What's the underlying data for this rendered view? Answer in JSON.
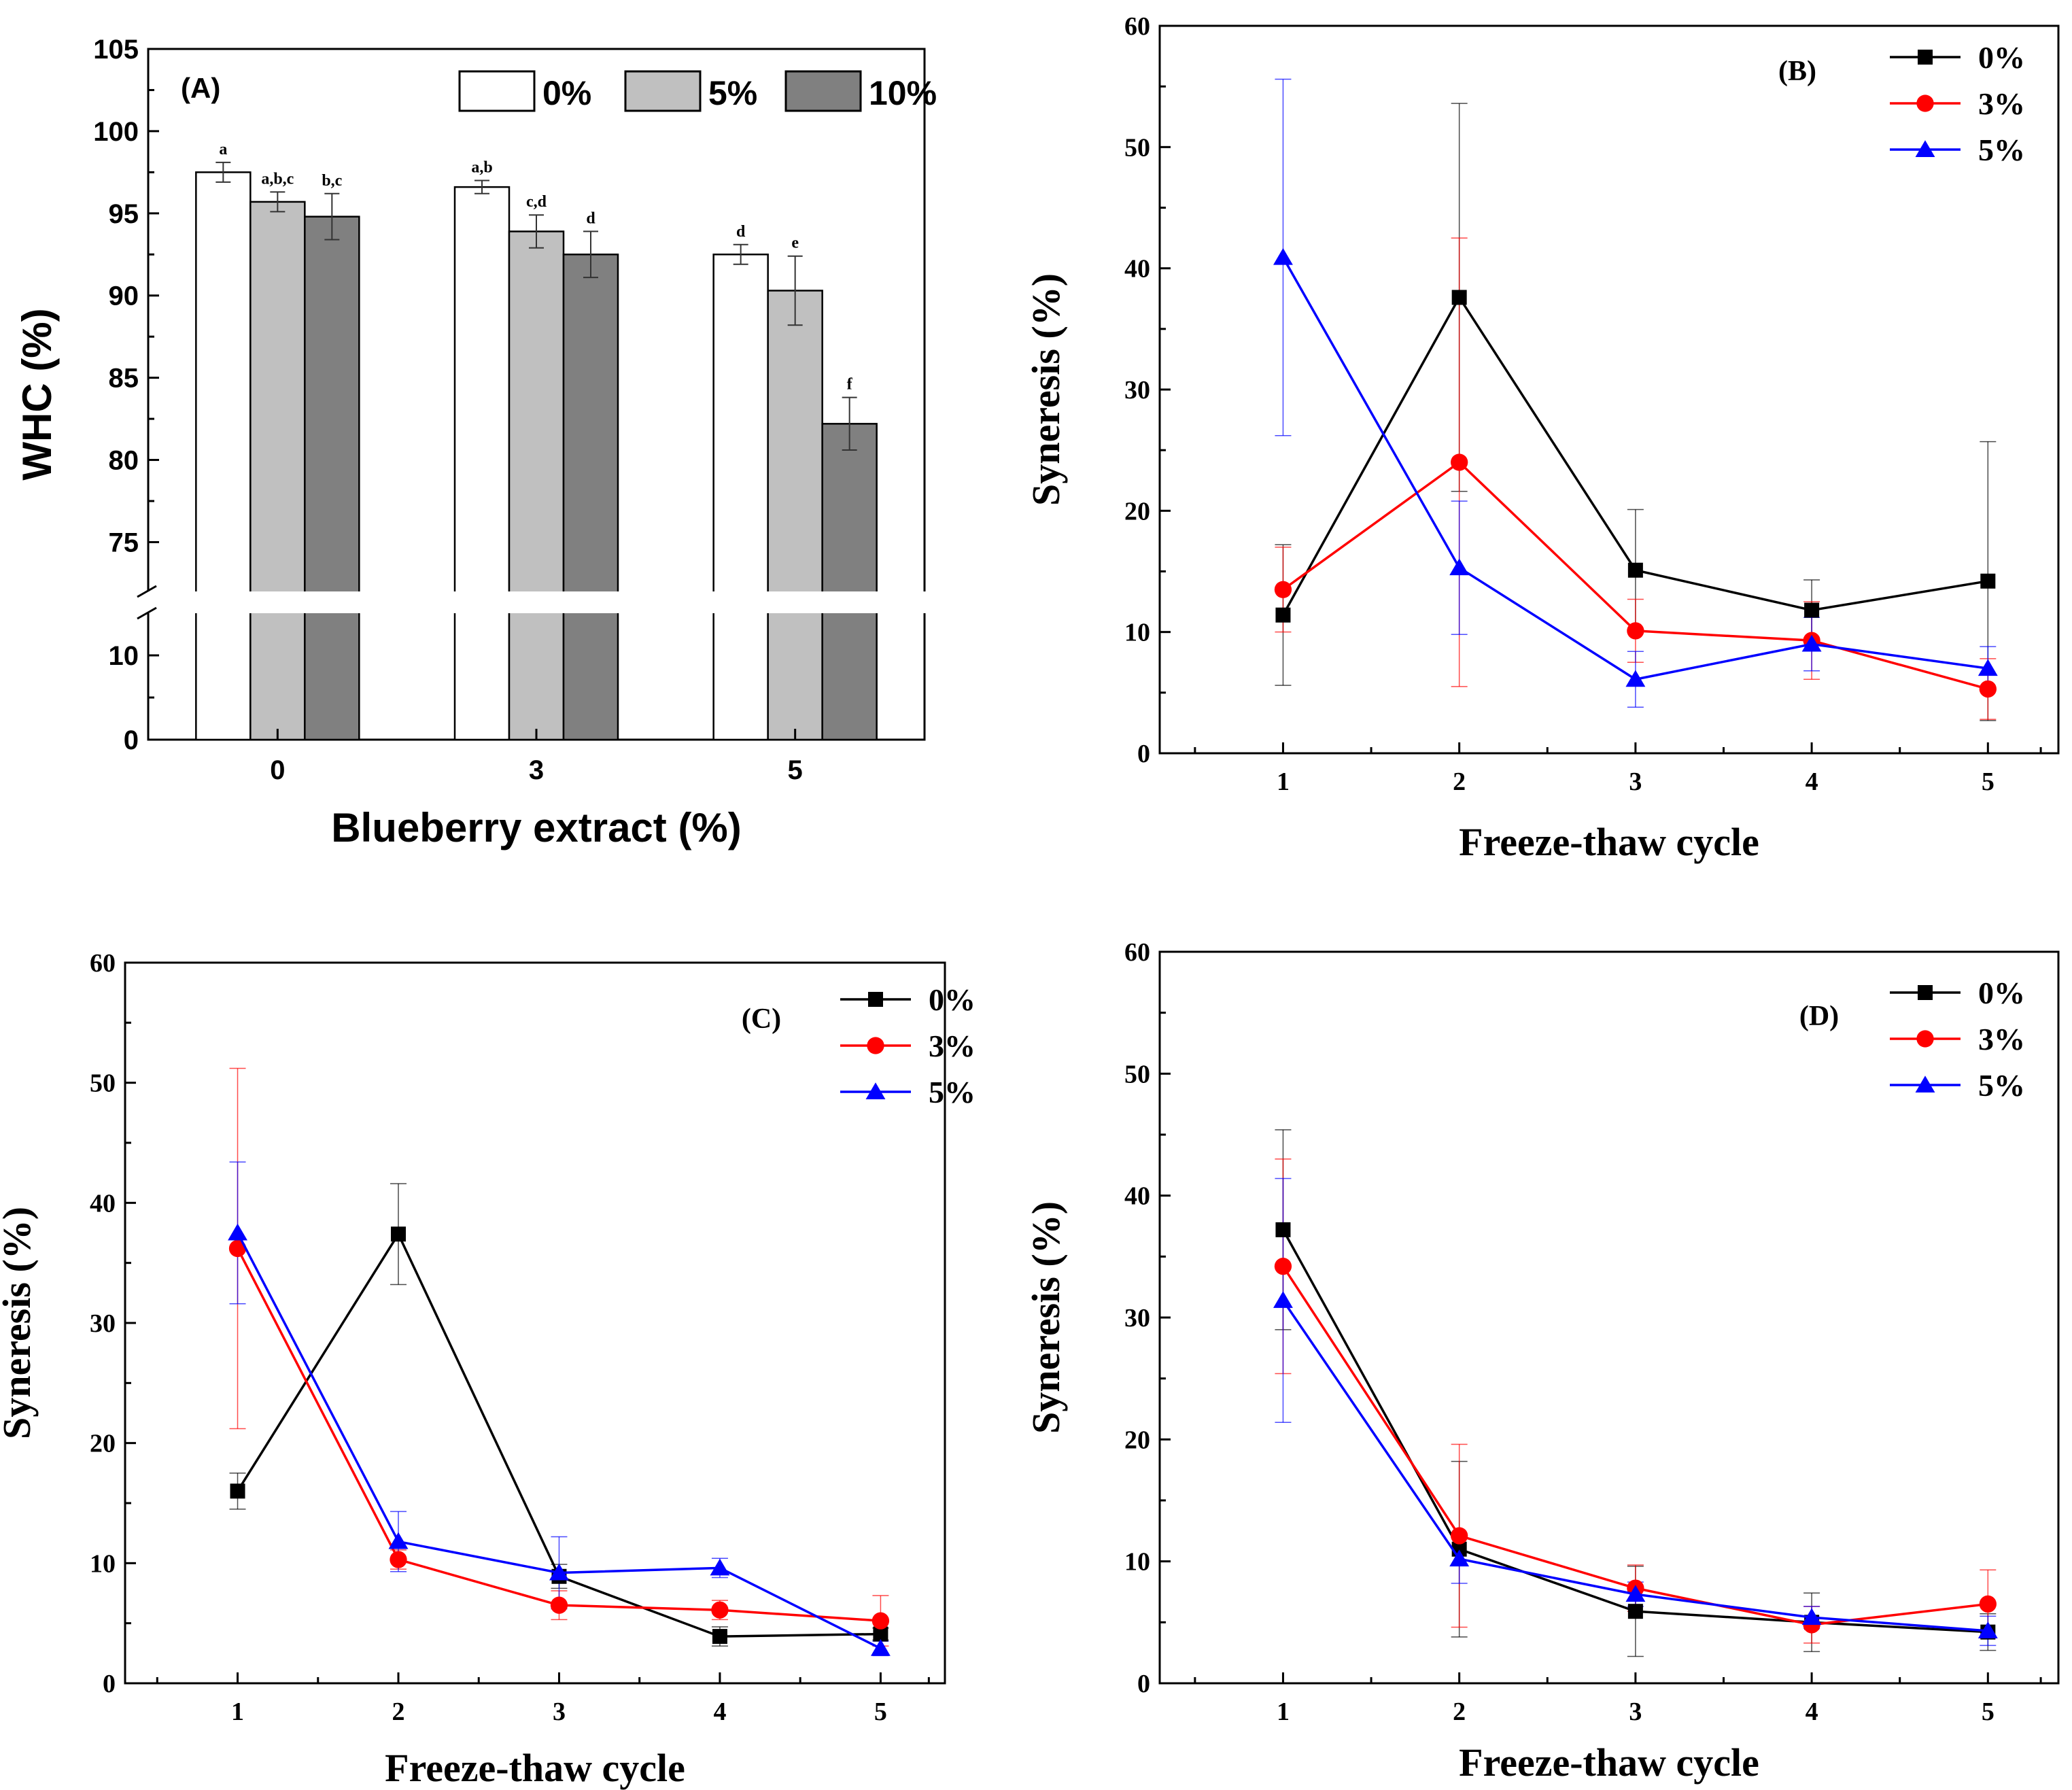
{
  "chart_data": [
    {
      "panel": "A",
      "type": "bar",
      "panel_label": "(A)",
      "xlabel": "Blueberry extract (%)",
      "ylabel": "WHC (%)",
      "categories": [
        "0",
        "3",
        "5"
      ],
      "ylim_lower": [
        0,
        15
      ],
      "ylim_upper": [
        72,
        105
      ],
      "yticks_lower": [
        "0",
        "10"
      ],
      "yticks_upper": [
        "75",
        "80",
        "85",
        "90",
        "95",
        "100",
        "105"
      ],
      "legend_position": "top-right",
      "series": [
        {
          "name": "0%",
          "color": "#ffffff",
          "values": [
            97.5,
            96.6,
            92.5
          ],
          "errors": [
            0.6,
            0.4,
            0.6
          ],
          "letters": [
            "a",
            "a,b",
            "d"
          ]
        },
        {
          "name": "5%",
          "color": "#c0c0c0",
          "values": [
            95.7,
            93.9,
            90.3
          ],
          "errors": [
            0.6,
            1.0,
            2.1
          ],
          "letters": [
            "a,b,c",
            "c,d",
            "e"
          ]
        },
        {
          "name": "10%",
          "color": "#808080",
          "values": [
            94.8,
            92.5,
            82.2
          ],
          "errors": [
            1.4,
            1.4,
            1.6
          ],
          "letters": [
            "b,c",
            "d",
            "f"
          ]
        }
      ]
    },
    {
      "panel": "B",
      "type": "line",
      "panel_label": "(B)",
      "xlabel": "Freeze-thaw cycle",
      "ylabel": "Syneresis (%)",
      "x": [
        1,
        2,
        3,
        4,
        5
      ],
      "xticks": [
        "1",
        "2",
        "3",
        "4",
        "5"
      ],
      "yticks": [
        "0",
        "10",
        "20",
        "30",
        "40",
        "50",
        "60"
      ],
      "ylim": [
        0,
        60
      ],
      "legend_position": "top-right",
      "series": [
        {
          "name": "0%",
          "color": "#000000",
          "marker": "square",
          "values": [
            11.4,
            37.6,
            15.1,
            11.8,
            14.2
          ],
          "errors": [
            5.8,
            16.0,
            5.0,
            2.5,
            11.5
          ]
        },
        {
          "name": "3%",
          "color": "#ff0000",
          "marker": "circle",
          "values": [
            13.5,
            24.0,
            10.1,
            9.3,
            5.3
          ],
          "errors": [
            3.5,
            18.5,
            2.6,
            3.2,
            2.5
          ]
        },
        {
          "name": "5%",
          "color": "#0000ff",
          "marker": "triangle",
          "values": [
            40.9,
            15.3,
            6.1,
            9.0,
            7.0
          ],
          "errors": [
            14.7,
            5.5,
            2.3,
            2.2,
            1.8
          ]
        }
      ]
    },
    {
      "panel": "C",
      "type": "line",
      "panel_label": "(C)",
      "xlabel": "Freeze-thaw cycle",
      "ylabel": "Syneresis (%)",
      "x": [
        1,
        2,
        3,
        4,
        5
      ],
      "xticks": [
        "1",
        "2",
        "3",
        "4",
        "5"
      ],
      "yticks": [
        "0",
        "10",
        "20",
        "30",
        "40",
        "50",
        "60"
      ],
      "ylim": [
        0,
        60
      ],
      "legend_position": "top-right",
      "series": [
        {
          "name": "0%",
          "color": "#000000",
          "marker": "square",
          "values": [
            16.0,
            37.4,
            8.9,
            3.9,
            4.1
          ],
          "errors": [
            1.5,
            4.2,
            1.0,
            0.8,
            0.5
          ]
        },
        {
          "name": "3%",
          "color": "#ff0000",
          "marker": "circle",
          "values": [
            36.2,
            10.3,
            6.5,
            6.1,
            5.2
          ],
          "errors": [
            15.0,
            0.8,
            1.2,
            0.8,
            2.1
          ]
        },
        {
          "name": "5%",
          "color": "#0000ff",
          "marker": "triangle",
          "values": [
            37.5,
            11.8,
            9.2,
            9.6,
            2.9
          ],
          "errors": [
            5.9,
            2.5,
            3.0,
            0.8,
            0.6
          ]
        }
      ]
    },
    {
      "panel": "D",
      "type": "line",
      "panel_label": "(D)",
      "xlabel": "Freeze-thaw cycle",
      "ylabel": "Syneresis (%)",
      "x": [
        1,
        2,
        3,
        4,
        5
      ],
      "xticks": [
        "1",
        "2",
        "3",
        "4",
        "5"
      ],
      "yticks": [
        "0",
        "10",
        "20",
        "30",
        "40",
        "50",
        "60"
      ],
      "ylim": [
        0,
        60
      ],
      "legend_position": "top-right",
      "series": [
        {
          "name": "0%",
          "color": "#000000",
          "marker": "square",
          "values": [
            37.2,
            11.0,
            5.9,
            5.0,
            4.2
          ],
          "errors": [
            8.2,
            7.2,
            3.7,
            2.4,
            1.5
          ]
        },
        {
          "name": "3%",
          "color": "#ff0000",
          "marker": "circle",
          "values": [
            34.2,
            12.1,
            7.8,
            4.8,
            6.5
          ],
          "errors": [
            8.8,
            7.5,
            1.9,
            1.5,
            2.8
          ]
        },
        {
          "name": "5%",
          "color": "#0000ff",
          "marker": "triangle",
          "values": [
            31.4,
            10.2,
            7.3,
            5.4,
            4.3
          ],
          "errors": [
            10.0,
            2.0,
            1.0,
            0.9,
            1.2
          ]
        }
      ]
    }
  ]
}
